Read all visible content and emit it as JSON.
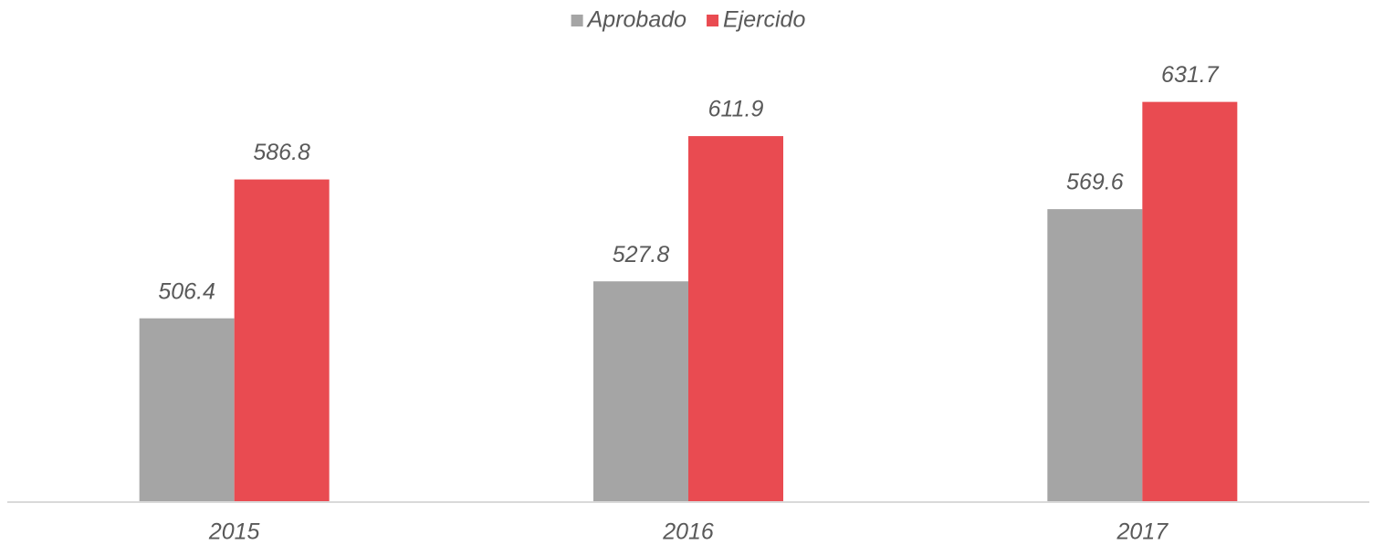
{
  "chart_data": {
    "type": "bar",
    "categories": [
      "2015",
      "2016",
      "2017"
    ],
    "series": [
      {
        "name": "Aprobado",
        "color": "#a5a5a5",
        "values": [
          506.4,
          527.8,
          569.6
        ]
      },
      {
        "name": "Ejercido",
        "color": "#e94b51",
        "values": [
          586.8,
          611.9,
          631.7
        ]
      }
    ],
    "ylim": [
      400,
      650
    ],
    "legend": "top"
  }
}
